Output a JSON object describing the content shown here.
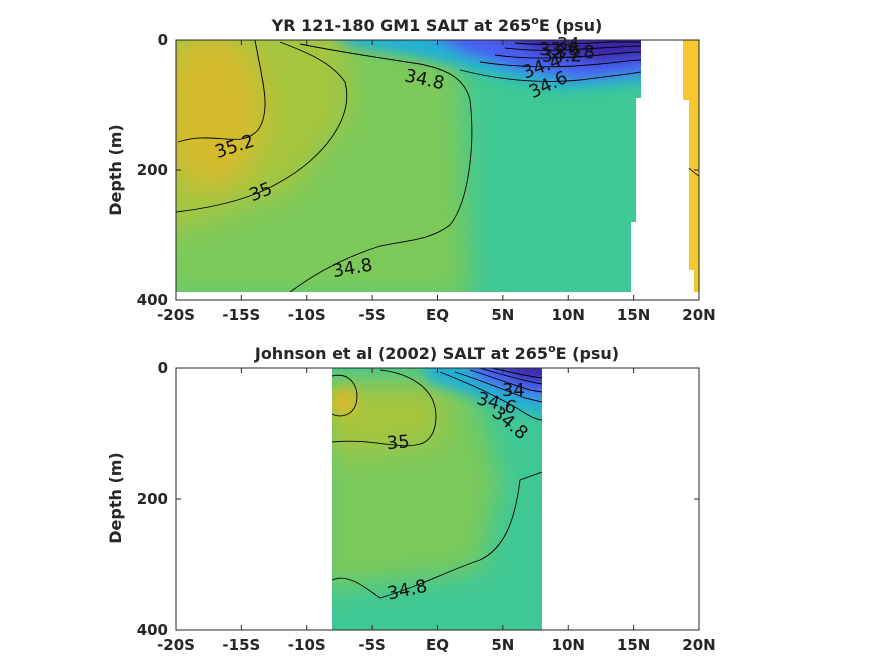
{
  "figure": {
    "colors": {
      "fresh_deep": "#3e26a8",
      "fresh": "#4a5ef0",
      "mid_fresh": "#20b1d3",
      "teal": "#3fc895",
      "green": "#7cc95a",
      "yellow_green": "#a6c53c",
      "gold": "#d4bb2e",
      "yellow": "#f6c830",
      "contour": "#000000",
      "axis": "#262626"
    }
  },
  "chart_data": [
    {
      "type": "heatmap",
      "title_main": "YR 121-180 GM1 SALT at 265",
      "title_sup": "o",
      "title_tail": "E (psu)",
      "xlabel": "",
      "ylabel": "Depth (m)",
      "xlim": [
        -20,
        20
      ],
      "ylim": [
        400,
        0
      ],
      "x_ticks": [
        -20,
        -15,
        -10,
        -5,
        0,
        5,
        10,
        15,
        20
      ],
      "x_tick_labels": [
        "-20S",
        "-15S",
        "-10S",
        "-5S",
        "EQ",
        "5N",
        "10N",
        "15N",
        "20N"
      ],
      "y_ticks": [
        0,
        200,
        400
      ],
      "y_tick_labels": [
        "0",
        "200",
        "400"
      ],
      "grid": false,
      "contour_labels": [
        {
          "text": "35.2",
          "lat": -15.5,
          "depth": 165,
          "angle": -18
        },
        {
          "text": "35",
          "lat": -13.5,
          "depth": 235,
          "angle": -22
        },
        {
          "text": "34.8",
          "lat": -1,
          "depth": 62,
          "angle": 12
        },
        {
          "text": "34.8",
          "lat": -6.5,
          "depth": 352,
          "angle": -10
        },
        {
          "text": "34.6",
          "lat": 8.5,
          "depth": 70,
          "angle": -25
        },
        {
          "text": "34.4",
          "lat": 8,
          "depth": 42,
          "angle": -20
        },
        {
          "text": "33.6",
          "lat": 9.3,
          "depth": 15,
          "angle": 0
        },
        {
          "text": "34",
          "lat": 10,
          "depth": 8,
          "angle": 0
        },
        {
          "text": "34.2",
          "lat": 9.5,
          "depth": 25,
          "angle": 0
        },
        {
          "text": "33.8",
          "lat": 10.5,
          "depth": 20,
          "angle": 0
        }
      ]
    },
    {
      "type": "heatmap",
      "title_main": "Johnson et al (2002) SALT at 265",
      "title_sup": "o",
      "title_tail": "E (psu)",
      "xlabel": "",
      "ylabel": "Depth (m)",
      "xlim": [
        -20,
        20
      ],
      "ylim": [
        400,
        0
      ],
      "data_lat_range": [
        -8,
        8
      ],
      "x_ticks": [
        -20,
        -15,
        -10,
        -5,
        0,
        5,
        10,
        15,
        20
      ],
      "x_tick_labels": [
        "-20S",
        "-15S",
        "-10S",
        "-5S",
        "EQ",
        "5N",
        "10N",
        "15N",
        "20N"
      ],
      "y_ticks": [
        0,
        200,
        400
      ],
      "y_tick_labels": [
        "0",
        "200",
        "400"
      ],
      "grid": false,
      "contour_labels": [
        {
          "text": "35",
          "lat": -3,
          "depth": 115,
          "angle": -5
        },
        {
          "text": "34.8",
          "lat": -2.3,
          "depth": 340,
          "angle": -12
        },
        {
          "text": "34.8",
          "lat": 5.5,
          "depth": 85,
          "angle": 40
        },
        {
          "text": "34.6",
          "lat": 4.5,
          "depth": 55,
          "angle": 15
        },
        {
          "text": "34",
          "lat": 5.8,
          "depth": 35,
          "angle": 0
        }
      ]
    }
  ]
}
